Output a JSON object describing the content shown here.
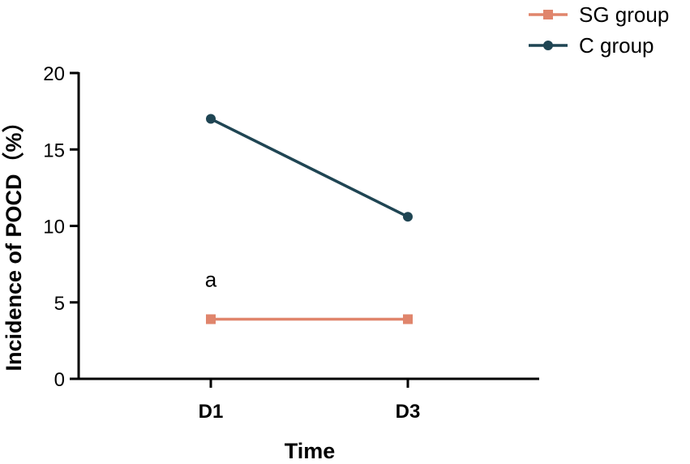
{
  "chart_data": {
    "type": "line",
    "x": [
      "D1",
      "D3"
    ],
    "xlabel": "Time",
    "ylabel": "Incidence of POCD（%）",
    "ylim": [
      0,
      20
    ],
    "yticks": [
      0,
      5,
      10,
      15,
      20
    ],
    "grid": false,
    "legend_position": "top-right",
    "series": [
      {
        "name": "SG group",
        "values": [
          3.9,
          3.9
        ],
        "color": "#e0856c",
        "marker": "square"
      },
      {
        "name": "C group",
        "values": [
          17.0,
          10.6
        ],
        "color": "#1f4553",
        "marker": "circle"
      }
    ],
    "annotations": [
      {
        "text": "a",
        "x": "D1",
        "y": 6.5
      }
    ]
  }
}
